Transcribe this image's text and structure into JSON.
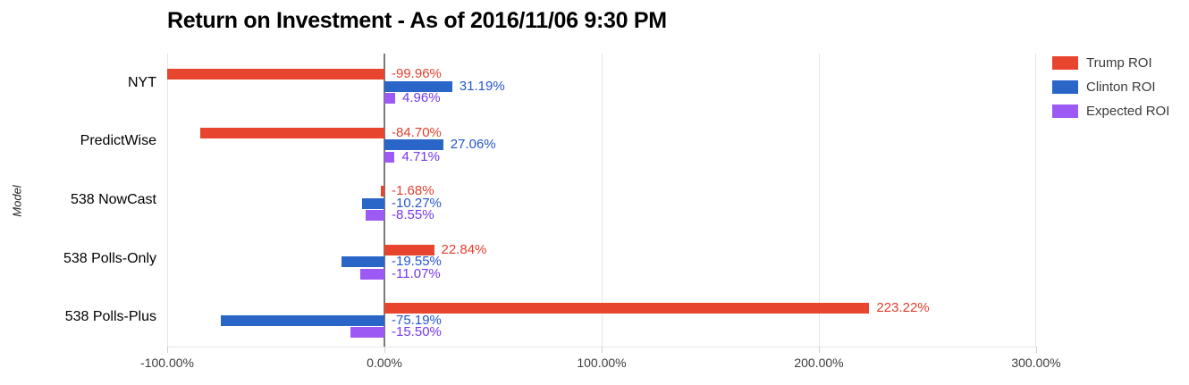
{
  "page": {
    "background": "#ffffff"
  },
  "chart_data": {
    "type": "bar",
    "orientation": "horizontal",
    "title": "Return on Investment - As of 2016/11/06 9:30 PM",
    "xlabel": "",
    "ylabel": "Model",
    "xlim": [
      -100,
      300
    ],
    "grid": true,
    "legend_position": "right",
    "zero_line_color": "#7a7a7a",
    "grid_color": "#e6e6e6",
    "categories": [
      "NYT",
      "PredictWise",
      "538 NowCast",
      "538 Polls-Only",
      "538 Polls-Plus"
    ],
    "series": [
      {
        "name": "Trump ROI",
        "color": "#e8452f",
        "label_color": "#e23f2e",
        "values": [
          -99.96,
          -84.7,
          -1.68,
          22.84,
          223.22
        ],
        "value_labels": [
          "-99.96%",
          "-84.70%",
          "-1.68%",
          "22.84%",
          "223.22%"
        ]
      },
      {
        "name": "Clinton ROI",
        "color": "#2966c8",
        "label_color": "#2355c9",
        "values": [
          31.19,
          27.06,
          -10.27,
          -19.55,
          -75.19
        ],
        "value_labels": [
          "31.19%",
          "27.06%",
          "-10.27%",
          "-19.55%",
          "-75.19%"
        ]
      },
      {
        "name": "Expected ROI",
        "color": "#9c59f3",
        "label_color": "#7437f0",
        "values": [
          4.96,
          4.71,
          -8.55,
          -11.07,
          -15.5
        ],
        "value_labels": [
          "4.96%",
          "4.71%",
          "-8.55%",
          "-11.07%",
          "-15.50%"
        ]
      }
    ],
    "x_ticks": [
      {
        "value": -100,
        "label": "-100.00%"
      },
      {
        "value": 0,
        "label": "0.00%"
      },
      {
        "value": 100,
        "label": "100.00%"
      },
      {
        "value": 200,
        "label": "200.00%"
      },
      {
        "value": 300,
        "label": "300.00%"
      }
    ]
  }
}
